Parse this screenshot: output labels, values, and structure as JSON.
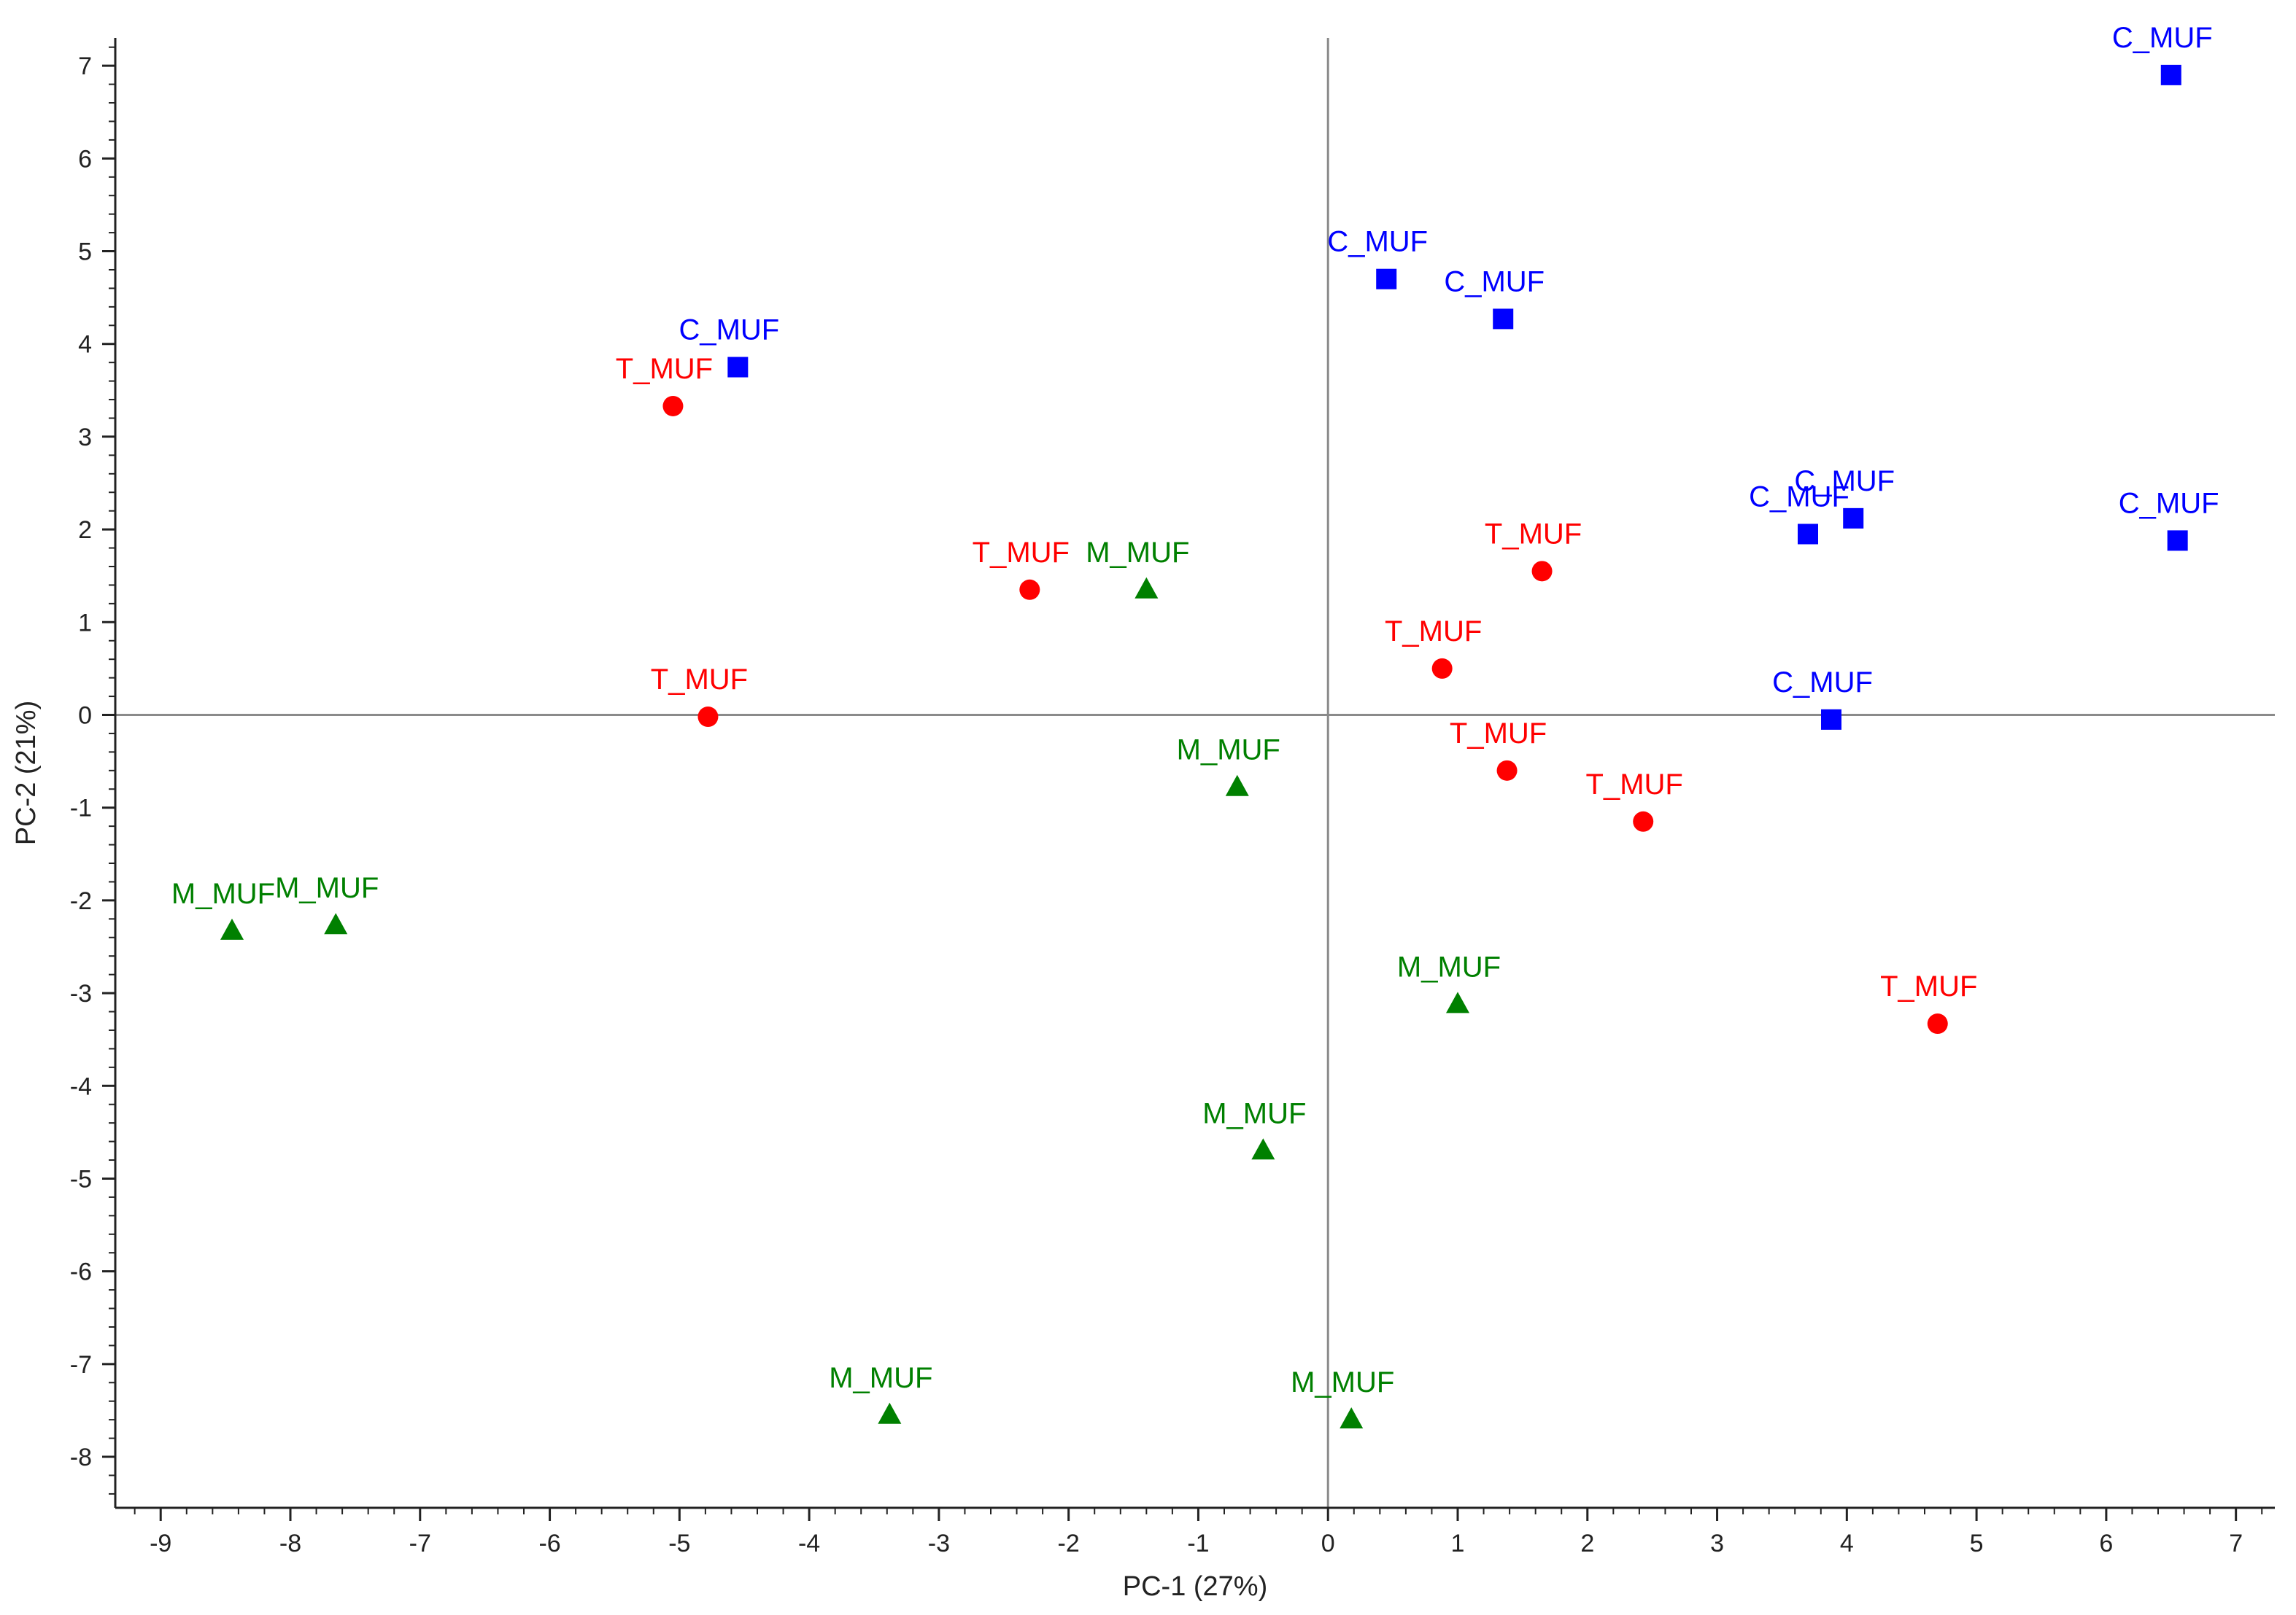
{
  "chart_data": {
    "type": "scatter",
    "title": "",
    "xlabel": "PC-1 (27%)",
    "ylabel": "PC-2 (21%)",
    "xlim": [
      -9.35,
      7.3
    ],
    "ylim": [
      -8.55,
      7.3
    ],
    "xticks": [
      -9,
      -8,
      -7,
      -6,
      -5,
      -4,
      -3,
      -2,
      -1,
      0,
      1,
      2,
      3,
      4,
      5,
      6,
      7
    ],
    "yticks": [
      -8,
      -7,
      -6,
      -5,
      -4,
      -3,
      -2,
      -1,
      0,
      1,
      2,
      3,
      4,
      5,
      6,
      7
    ],
    "grid": false,
    "zero_lines": true,
    "series": [
      {
        "name": "C_MUF",
        "marker": "square",
        "color": "#0000ff",
        "points": [
          {
            "x": 6.5,
            "y": 6.9,
            "label": "C_MUF"
          },
          {
            "x": 0.45,
            "y": 4.7,
            "label": "C_MUF"
          },
          {
            "x": 1.35,
            "y": 4.27,
            "label": "C_MUF"
          },
          {
            "x": -4.55,
            "y": 3.75,
            "label": "C_MUF"
          },
          {
            "x": 3.7,
            "y": 1.95,
            "label": "C_MUF"
          },
          {
            "x": 4.05,
            "y": 2.12,
            "label": "C_MUF"
          },
          {
            "x": 6.55,
            "y": 1.88,
            "label": "C_MUF"
          },
          {
            "x": 3.88,
            "y": -0.05,
            "label": "C_MUF"
          }
        ]
      },
      {
        "name": "T_MUF",
        "marker": "circle",
        "color": "#ff0000",
        "points": [
          {
            "x": -5.05,
            "y": 3.33,
            "label": "T_MUF"
          },
          {
            "x": -2.3,
            "y": 1.35,
            "label": "T_MUF"
          },
          {
            "x": 1.65,
            "y": 1.55,
            "label": "T_MUF"
          },
          {
            "x": 0.88,
            "y": 0.5,
            "label": "T_MUF"
          },
          {
            "x": -4.78,
            "y": -0.02,
            "label": "T_MUF"
          },
          {
            "x": 1.38,
            "y": -0.6,
            "label": "T_MUF"
          },
          {
            "x": 2.43,
            "y": -1.15,
            "label": "T_MUF"
          },
          {
            "x": 4.7,
            "y": -3.33,
            "label": "T_MUF"
          }
        ]
      },
      {
        "name": "M_MUF",
        "marker": "triangle",
        "color": "#008000",
        "points": [
          {
            "x": -1.4,
            "y": 1.35,
            "label": "M_MUF"
          },
          {
            "x": -0.7,
            "y": -0.78,
            "label": "M_MUF"
          },
          {
            "x": -8.45,
            "y": -2.33,
            "label": "M_MUF"
          },
          {
            "x": -7.65,
            "y": -2.27,
            "label": "M_MUF"
          },
          {
            "x": 1.0,
            "y": -3.12,
            "label": "M_MUF"
          },
          {
            "x": -0.5,
            "y": -4.7,
            "label": "M_MUF"
          },
          {
            "x": -3.38,
            "y": -7.55,
            "label": "M_MUF"
          },
          {
            "x": 0.18,
            "y": -7.6,
            "label": "M_MUF"
          }
        ]
      }
    ]
  }
}
